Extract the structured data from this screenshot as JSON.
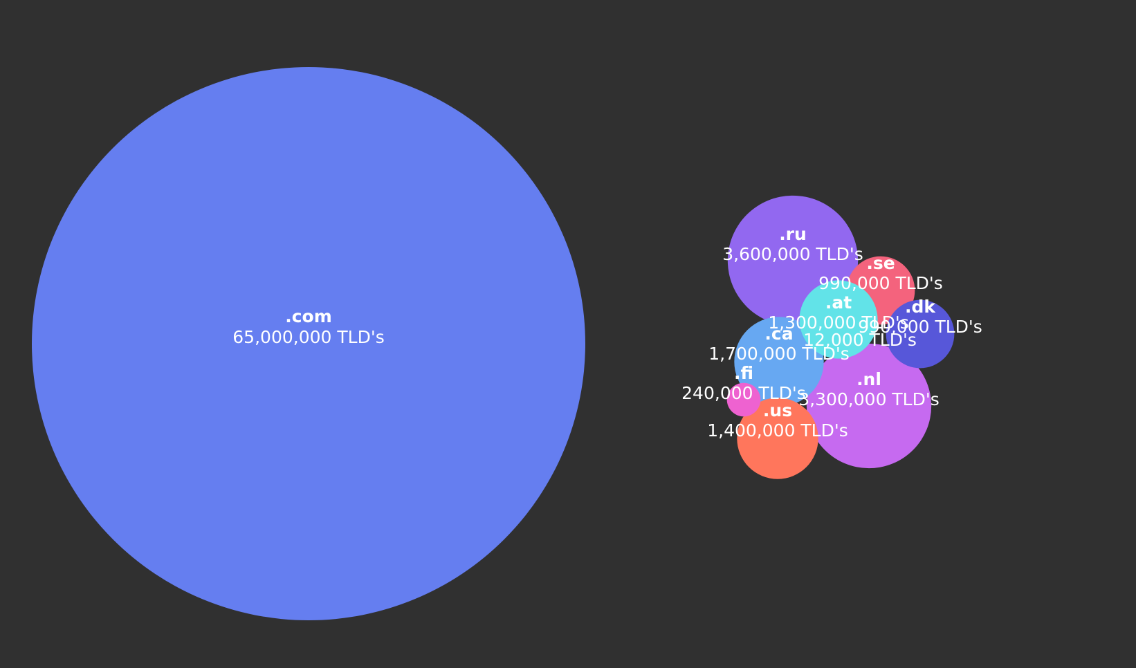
{
  "chart_data": {
    "type": "bubble",
    "title": "",
    "xlabel": "",
    "ylabel": "",
    "grid": false,
    "legend": "none",
    "value_suffix": " TLD's",
    "background": "#303030",
    "bubbles": [
      {
        "label": ".com",
        "value": 65000000,
        "value_text": "65,000,000 TLD's",
        "color": "#657ef0"
      },
      {
        "label": ".ru",
        "value": 3600000,
        "value_text": "3,600,000 TLD's",
        "color": "#9268f0"
      },
      {
        "label": ".nl",
        "value": 3300000,
        "value_text": "3,300,000 TLD's",
        "color": "#c66af0"
      },
      {
        "label": ".ca",
        "value": 1700000,
        "value_text": "1,700,000 TLD's",
        "color": "#67a8f2"
      },
      {
        "label": ".us",
        "value": 1400000,
        "value_text": "1,400,000 TLD's",
        "color": "#ff765c"
      },
      {
        "label": ".se",
        "value": 990000,
        "value_text": "990,000 TLD's",
        "color": "#f4637d"
      },
      {
        "label": ".dk",
        "value": 990000,
        "value_text": "990,000 TLD's",
        "color": "#5757d9"
      },
      {
        "label": ".at",
        "value": 1300000,
        "value_text": "1,300,000 TLD's",
        "color": "#62e3e8"
      },
      {
        "label": ".fi",
        "value": 240000,
        "value_text": "240,000 TLD's",
        "color": "#ee62d0"
      },
      {
        "label": "",
        "value": 12000,
        "value_text": "12,000 TLD's",
        "color": "#62e3e8"
      }
    ]
  }
}
